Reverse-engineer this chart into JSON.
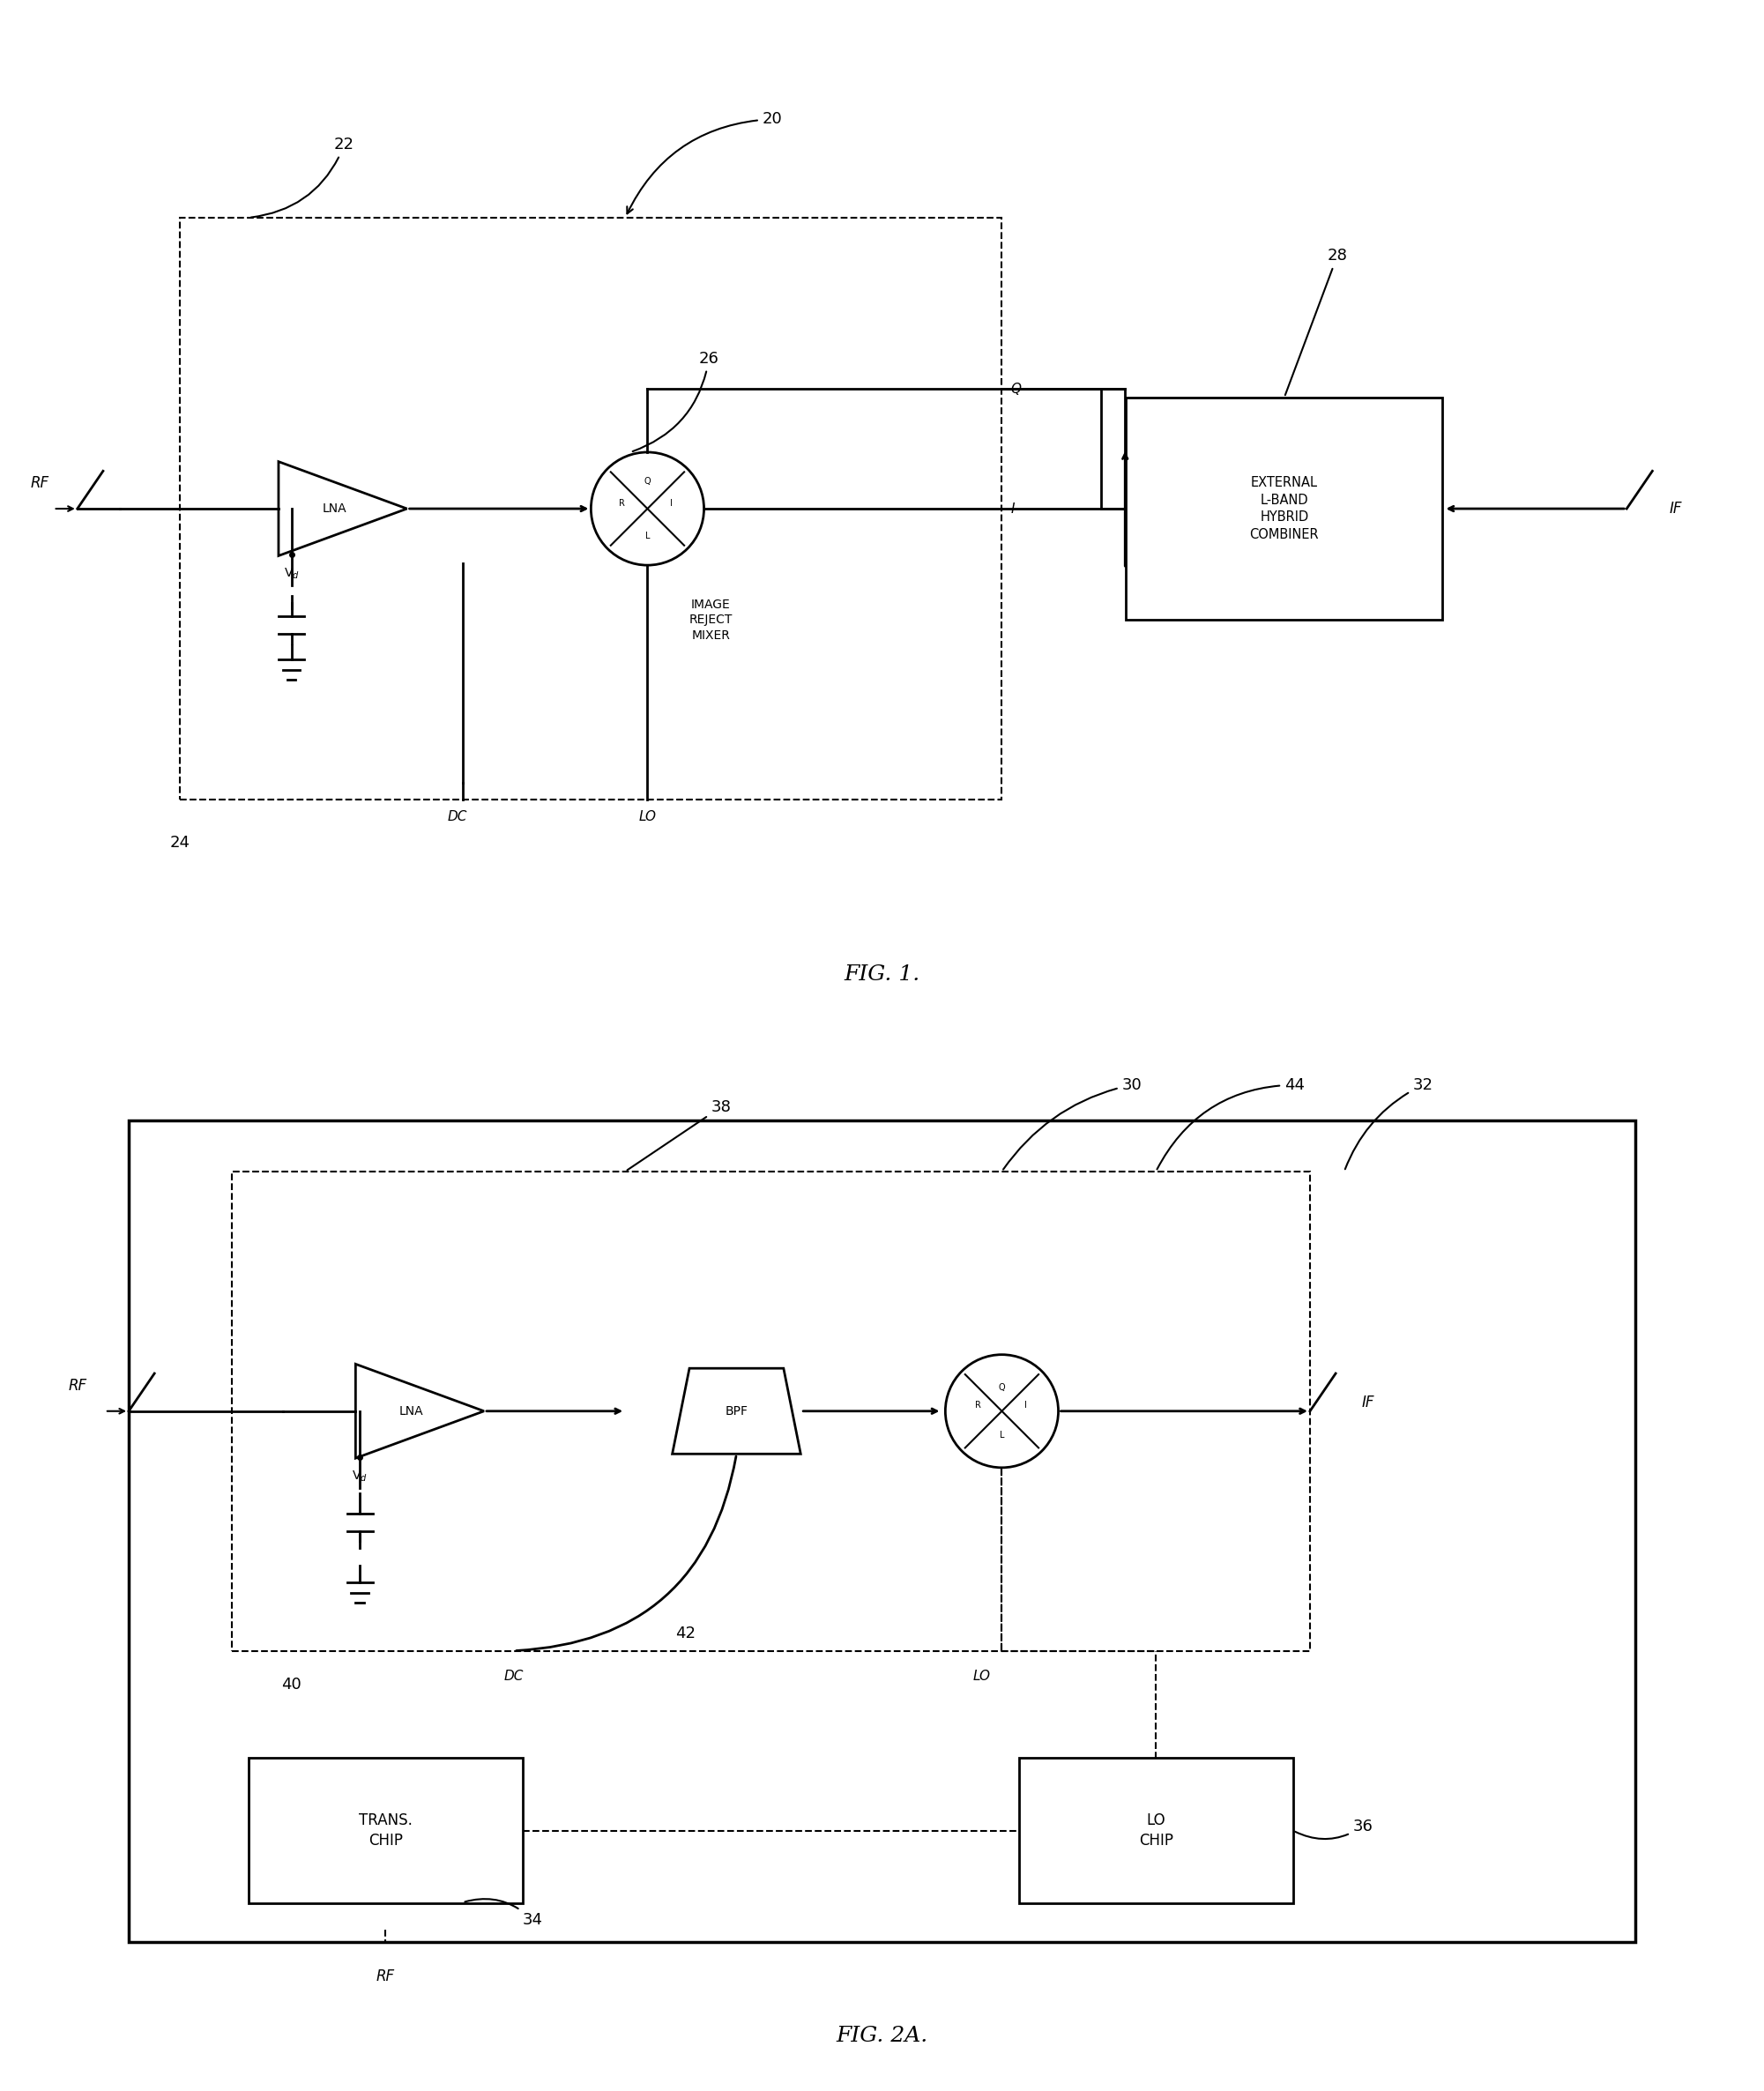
{
  "background_color": "#ffffff",
  "fig1": {
    "title": "FIG. 1.",
    "label_20": "20",
    "label_22": "22",
    "label_24": "24",
    "label_26": "26",
    "label_28": "28"
  },
  "fig2a": {
    "title": "FIG. 2A.",
    "label_30": "30",
    "label_32": "32",
    "label_34": "34",
    "label_36": "36",
    "label_38": "38",
    "label_40": "40",
    "label_42": "42",
    "label_44": "44"
  }
}
